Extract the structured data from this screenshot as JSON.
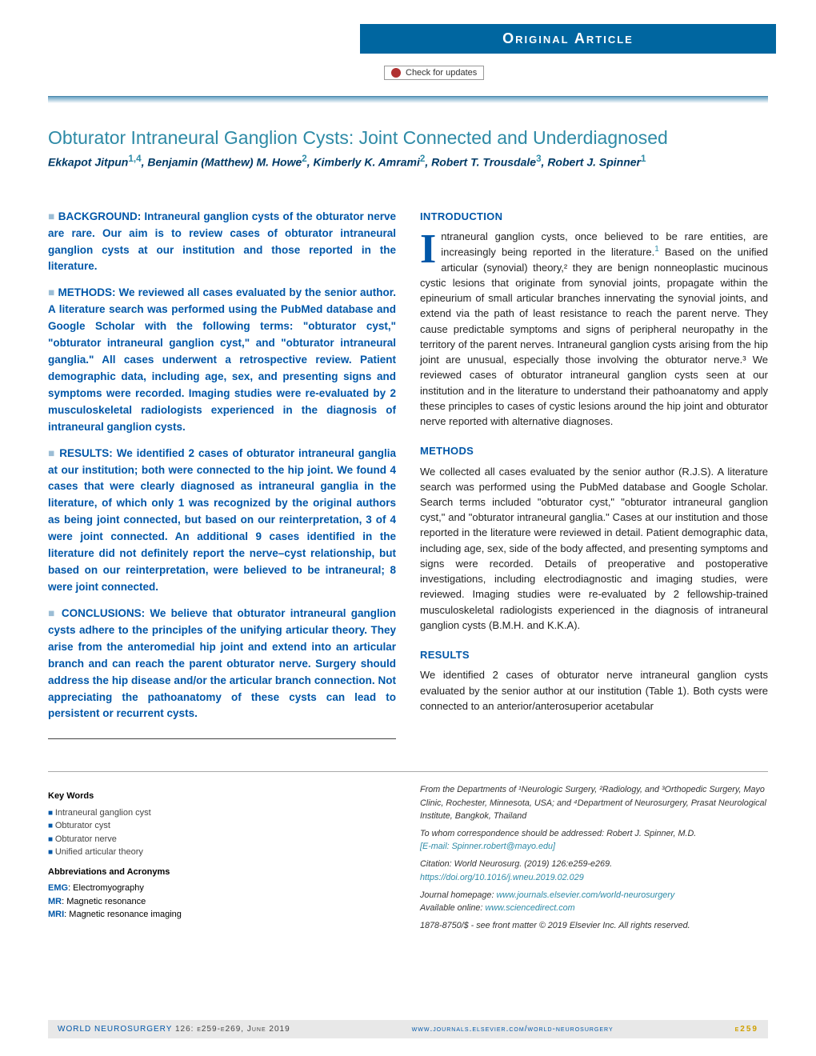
{
  "header": {
    "category": "Original Article",
    "check_updates": "Check for updates"
  },
  "title": "Obturator Intraneural Ganglion Cysts: Joint Connected and Underdiagnosed",
  "authors_html": "Ekkapot Jitpun<sup>1,4</sup>, Benjamin (Matthew) M. Howe<sup>2</sup>, Kimberly K. Amrami<sup>2</sup>, Robert T. Trousdale<sup>3</sup>, Robert J. Spinner<sup>1</sup>",
  "abstract": {
    "background": "BACKGROUND: Intraneural ganglion cysts of the obturator nerve are rare. Our aim is to review cases of obturator intraneural ganglion cysts at our institution and those reported in the literature.",
    "methods": "METHODS: We reviewed all cases evaluated by the senior author. A literature search was performed using the PubMed database and Google Scholar with the following terms: \"obturator cyst,\" \"obturator intraneural ganglion cyst,\" and \"obturator intraneural ganglia.\" All cases underwent a retrospective review. Patient demographic data, including age, sex, and presenting signs and symptoms were recorded. Imaging studies were re-evaluated by 2 musculoskeletal radiologists experienced in the diagnosis of intraneural ganglion cysts.",
    "results": "RESULTS: We identified 2 cases of obturator intraneural ganglia at our institution; both were connected to the hip joint. We found 4 cases that were clearly diagnosed as intraneural ganglia in the literature, of which only 1 was recognized by the original authors as being joint connected, but based on our reinterpretation, 3 of 4 were joint connected. An additional 9 cases identified in the literature did not definitely report the nerve–cyst relationship, but based on our reinterpretation, were believed to be intraneural; 8 were joint connected.",
    "conclusions": "CONCLUSIONS: We believe that obturator intraneural ganglion cysts adhere to the principles of the unifying articular theory. They arise from the anteromedial hip joint and extend into an articular branch and can reach the parent obturator nerve. Surgery should address the hip disease and/or the articular branch connection. Not appreciating the pathoanatomy of these cysts can lead to persistent or recurrent cysts."
  },
  "sections": {
    "intro_head": "INTRODUCTION",
    "intro_text_first": "ntraneural ganglion cysts, once believed to be rare entities, are increasingly being reported in the literature.",
    "intro_text_rest": " Based on the unified articular (synovial) theory,² they are benign nonneoplastic mucinous cystic lesions that originate from synovial joints, propagate within the epineurium of small articular branches innervating the synovial joints, and extend via the path of least resistance to reach the parent nerve. They cause predictable symptoms and signs of peripheral neuropathy in the territory of the parent nerves. Intraneural ganglion cysts arising from the hip joint are unusual, especially those involving the obturator nerve.³ We reviewed cases of obturator intraneural ganglion cysts seen at our institution and in the literature to understand their pathoanatomy and apply these principles to cases of cystic lesions around the hip joint and obturator nerve reported with alternative diagnoses.",
    "methods_head": "METHODS",
    "methods_text": "We collected all cases evaluated by the senior author (R.J.S). A literature search was performed using the PubMed database and Google Scholar. Search terms included \"obturator cyst,\" \"obturator intraneural ganglion cyst,\" and \"obturator intraneural ganglia.\" Cases at our institution and those reported in the literature were reviewed in detail. Patient demographic data, including age, sex, side of the body affected, and presenting symptoms and signs were recorded. Details of preoperative and postoperative investigations, including electrodiagnostic and imaging studies, were reviewed. Imaging studies were re-evaluated by 2 fellowship-trained musculoskeletal radiologists experienced in the diagnosis of intraneural ganglion cysts (B.M.H. and K.K.A).",
    "results_head": "RESULTS",
    "results_text": "We identified 2 cases of obturator nerve intraneural ganglion cysts evaluated by the senior author at our institution (Table 1). Both cysts were connected to an anterior/anterosuperior acetabular"
  },
  "keywords": {
    "head": "Key Words",
    "items": [
      "Intraneural ganglion cyst",
      "Obturator cyst",
      "Obturator nerve",
      "Unified articular theory"
    ]
  },
  "abbreviations": {
    "head": "Abbreviations and Acronyms",
    "items": [
      {
        "ab": "EMG",
        "def": "Electromyography"
      },
      {
        "ab": "MR",
        "def": "Magnetic resonance"
      },
      {
        "ab": "MRI",
        "def": "Magnetic resonance imaging"
      }
    ]
  },
  "affiliations": "From the Departments of ¹Neurologic Surgery, ²Radiology, and ³Orthopedic Surgery, Mayo Clinic, Rochester, Minnesota, USA; and ⁴Department of Neurosurgery, Prasat Neurological Institute, Bangkok, Thailand",
  "correspondence": "To whom correspondence should be addressed: Robert J. Spinner, M.D.",
  "email": "[E-mail: Spinner.robert@mayo.edu]",
  "citation": "Citation: World Neurosurg. (2019) 126:e259-e269.",
  "doi": "https://doi.org/10.1016/j.wneu.2019.02.029",
  "homepage_label": "Journal homepage: ",
  "homepage": "www.journals.elsevier.com/world-neurosurgery",
  "available_label": "Available online: ",
  "available": "www.sciencedirect.com",
  "copyright": "1878-8750/$ - see front matter © 2019 Elsevier Inc. All rights reserved.",
  "footer": {
    "journal": "WORLD NEUROSURGERY",
    "issue": "126: e259-e269, June 2019",
    "url": "www.journals.elsevier.com/world-neurosurgery",
    "page": "e259"
  },
  "colors": {
    "brand_blue": "#0066a0",
    "link_teal": "#2d8aa6",
    "text_blue": "#0057a8"
  }
}
